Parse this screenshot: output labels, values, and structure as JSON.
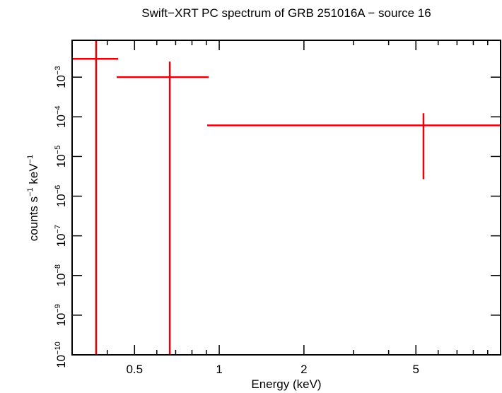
{
  "chart_data": {
    "type": "errorbar",
    "title": "Swift−XRT PC spectrum of GRB 251016A − source 16",
    "xlabel": "Energy (keV)",
    "ylabel": [
      {
        "text": "counts s",
        "sup": "−1"
      },
      {
        "text": " keV",
        "sup": "−1"
      }
    ],
    "xscale": "log",
    "yscale": "log",
    "xlim": [
      0.3,
      10
    ],
    "ylim": [
      1e-10,
      0.0085
    ],
    "xticks": [
      0.5,
      1,
      2,
      5
    ],
    "xminor": [
      0.3,
      0.4,
      0.6,
      0.7,
      0.8,
      0.9,
      3,
      4,
      6,
      7,
      8,
      9
    ],
    "yticks": [
      {
        "value": 1e-10,
        "label": "10",
        "sup": "−10"
      },
      {
        "value": 1e-09,
        "label": "10",
        "sup": "−9"
      },
      {
        "value": 1e-08,
        "label": "10",
        "sup": "−8"
      },
      {
        "value": 1e-07,
        "label": "10",
        "sup": "−7"
      },
      {
        "value": 1e-06,
        "label": "10",
        "sup": "−6"
      },
      {
        "value": 1e-05,
        "label": "10",
        "sup": "−5"
      },
      {
        "value": 0.0001,
        "label": "10",
        "sup": "−4"
      },
      {
        "value": 0.001,
        "label": "10",
        "sup": "−3"
      }
    ],
    "color": "#e8000b",
    "points": [
      {
        "x": 0.365,
        "x_low": 0.3,
        "x_high": 0.437,
        "y": 0.0029,
        "y_low": null,
        "y_high": null
      },
      {
        "x": 0.667,
        "x_low": 0.432,
        "x_high": 0.917,
        "y": 0.001,
        "y_low": null,
        "y_high": 0.00247
      },
      {
        "x": 5.32,
        "x_low": 0.906,
        "x_high": 10,
        "y": 6.1e-05,
        "y_low": 2.68e-06,
        "y_high": 0.000123
      }
    ]
  }
}
